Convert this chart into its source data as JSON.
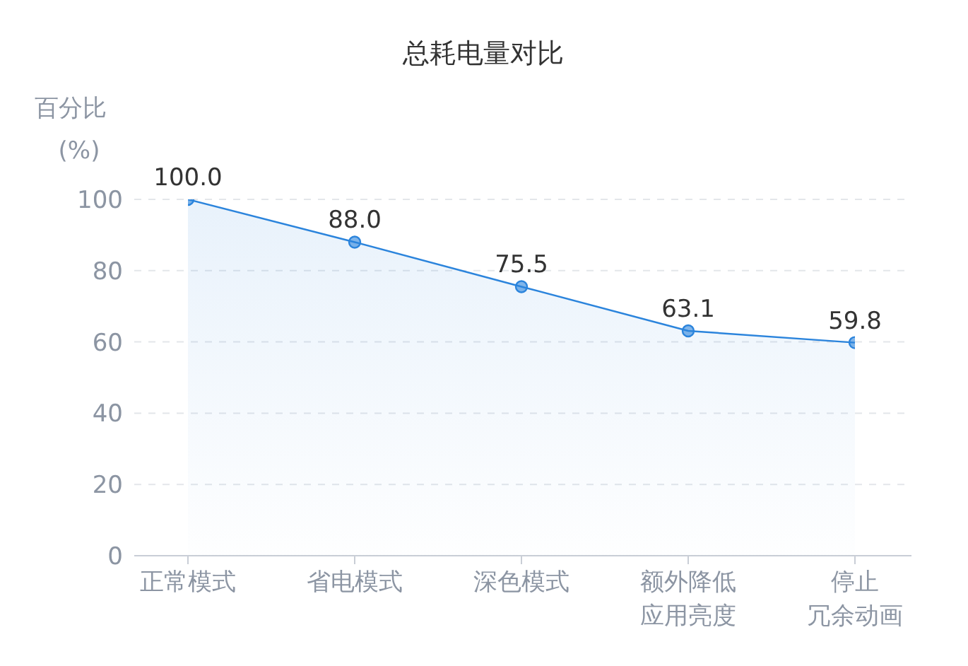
{
  "chart_data": {
    "type": "area",
    "title": "总耗电量对比",
    "ylabel": "百分比\n(%)",
    "categories": [
      "正常模式",
      "省电模式",
      "深色模式",
      "额外降低应用亮度",
      "停止冗余动画"
    ],
    "values": [
      100,
      88,
      75.5,
      63.1,
      59.8
    ],
    "value_labels": [
      "100.0",
      "88.0",
      "75.5",
      "63.1",
      "59.8"
    ],
    "color": "#2b84dc",
    "ylim": [
      0,
      100
    ],
    "yticks": [
      0,
      20,
      40,
      60,
      80,
      100
    ],
    "grid": "y",
    "marker": "circle"
  }
}
